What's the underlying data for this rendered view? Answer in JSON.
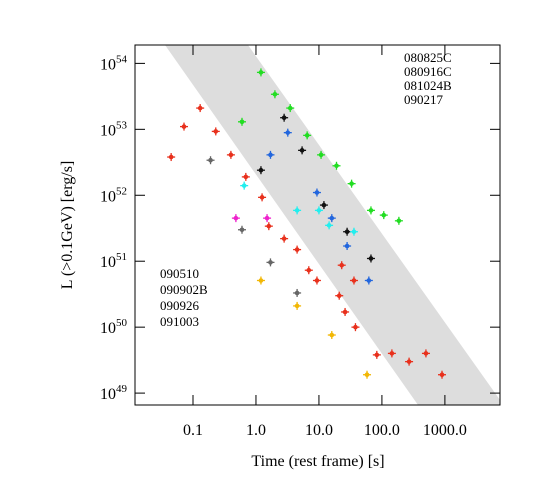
{
  "chart_data": {
    "type": "scatter",
    "xlabel": "Time (rest frame)  [s]",
    "ylabel": "L (>0.1GeV) [erg/s]",
    "xscale": "log",
    "yscale": "log",
    "xlim": [
      0.012,
      7500
    ],
    "ylim": [
      6.6e+48,
      1.9e+54
    ],
    "xticks": [
      0.1,
      {
        "value": 1,
        "label": "1.0"
      },
      {
        "value": 10,
        "label": "10.0"
      },
      {
        "value": 100,
        "label": "100.0"
      },
      {
        "value": 1000,
        "label": "1000.0"
      }
    ],
    "yticks": [
      {
        "value": 1e+49,
        "label": "10^49"
      },
      {
        "value": 1e+50,
        "label": "10^50"
      },
      {
        "value": 1e+51,
        "label": "10^51"
      },
      {
        "value": 1e+52,
        "label": "10^52"
      },
      {
        "value": 1e+53,
        "label": "10^53"
      },
      {
        "value": 1e+54,
        "label": "10^54"
      }
    ],
    "series": [
      {
        "name": "080825C",
        "color": "#f2b705",
        "legend": "upper right",
        "x": [
          1.2,
          4.5,
          16,
          58
        ],
        "values": [
          5.1e+50,
          2.1e+50,
          7.6e+49,
          1.9e+49
        ]
      },
      {
        "name": "080916C",
        "color": "#22dd22",
        "legend": "upper right",
        "x": [
          1.2,
          2.0,
          3.5,
          6.5,
          10.8,
          19,
          33,
          67,
          107,
          186,
          0.6
        ],
        "values": [
          7.3e+53,
          3.4e+53,
          2.1e+53,
          8.1e+52,
          4.1e+52,
          2.8e+52,
          1.5e+52,
          5.9e+51,
          5e+51,
          4.1e+51,
          1.3e+53
        ]
      },
      {
        "name": "081024B",
        "color": "#666666",
        "legend": "upper right",
        "x": [
          0.19,
          0.6,
          1.7,
          4.5
        ],
        "values": [
          3.4e+52,
          3e+51,
          9.6e+50,
          3.3e+50
        ]
      },
      {
        "name": "090217",
        "color": "#ee22cc",
        "legend": "upper right",
        "x": [
          0.48,
          1.5
        ],
        "values": [
          4.5e+51,
          4.5e+51
        ]
      },
      {
        "name": "090510",
        "color": "#e8301c",
        "legend": "lower left",
        "x": [
          0.045,
          0.072,
          0.13,
          0.23,
          0.4,
          0.69,
          1.25,
          1.6,
          2.8,
          4.5,
          6.9,
          9.3,
          23,
          21,
          26,
          36,
          38,
          83,
          144,
          270,
          500,
          900
        ],
        "values": [
          3.8e+52,
          1.1e+53,
          2.1e+53,
          9.3e+52,
          4.1e+52,
          1.9e+52,
          9.3e+51,
          3.4e+51,
          2.2e+51,
          1.5e+51,
          7.3e+50,
          5.1e+50,
          8.7e+50,
          3e+50,
          1.7e+50,
          5.1e+50,
          1e+50,
          3.8e+49,
          4e+49,
          3e+49,
          4e+49,
          1.9e+49
        ]
      },
      {
        "name": "090902B",
        "color": "#2266dd",
        "legend": "lower left",
        "x": [
          3.2,
          1.7,
          9.3,
          16,
          28,
          62
        ],
        "values": [
          8.9e+52,
          4.1e+52,
          1.1e+52,
          4.5e+51,
          1.7e+51,
          5.1e+50
        ]
      },
      {
        "name": "090926",
        "color": "#111111",
        "legend": "lower left",
        "x": [
          2.8,
          5.4,
          1.2,
          12,
          28,
          67
        ],
        "values": [
          1.5e+53,
          4.8e+52,
          2.4e+52,
          7.1e+51,
          2.8e+51,
          1.1e+51
        ]
      },
      {
        "name": "091003",
        "color": "#22eeee",
        "legend": "lower left",
        "x": [
          0.65,
          4.5,
          10,
          14.5,
          36
        ],
        "values": [
          1.4e+52,
          5.9e+51,
          5.9e+51,
          3.5e+51,
          2.8e+51
        ]
      }
    ]
  }
}
